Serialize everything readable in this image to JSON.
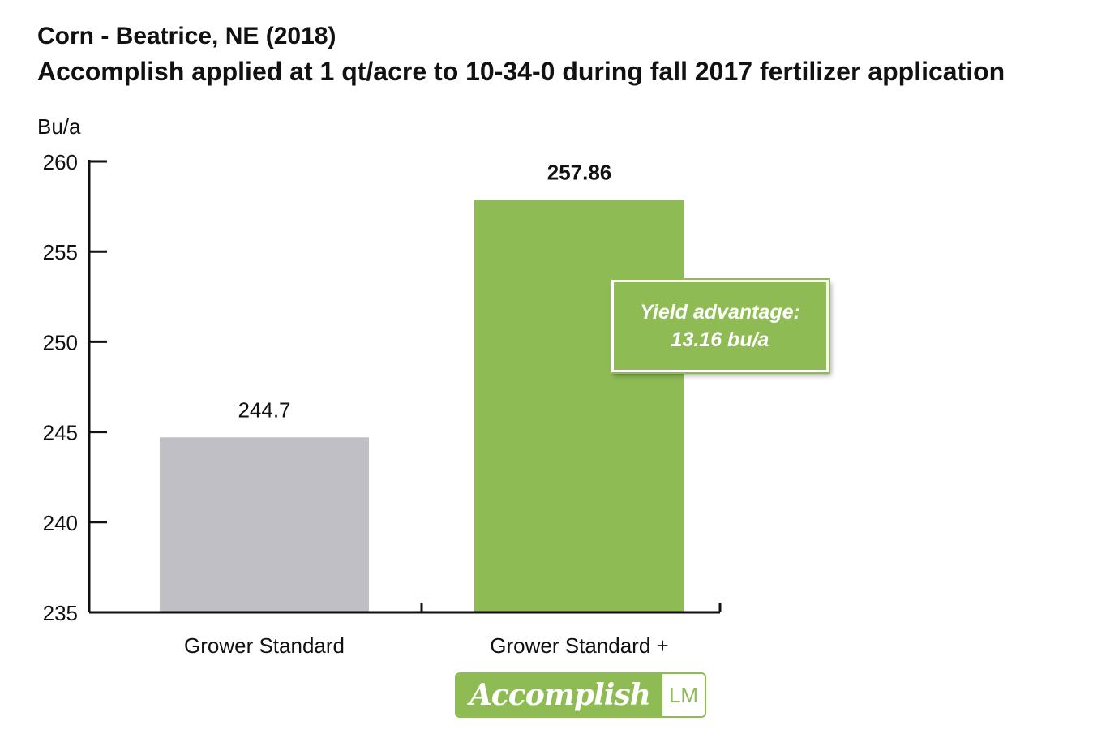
{
  "header": {
    "title": "Corn - Beatrice, NE (2018)",
    "subtitle": "Accomplish applied at 1 qt/acre to 10-34-0 during fall 2017 fertilizer application",
    "unit_label": "Bu/a"
  },
  "colors": {
    "grower_standard": "#c0bfc5",
    "accomplish": "#8fbb54",
    "axis": "#111111"
  },
  "callout": {
    "line1": "Yield advantage:",
    "line2": "13.16 bu/a"
  },
  "logo": {
    "brand": "Accomplish",
    "suffix": "LM"
  },
  "chart_data": {
    "type": "bar",
    "categories": [
      "Grower Standard",
      "Grower Standard +"
    ],
    "values": [
      244.7,
      257.86
    ],
    "value_labels": [
      "244.7",
      "257.86"
    ],
    "ylabel": "Bu/a",
    "ylim": [
      235,
      260
    ],
    "yticks": [
      260,
      255,
      250,
      245,
      240,
      235
    ],
    "grid": false,
    "legend": "none"
  }
}
